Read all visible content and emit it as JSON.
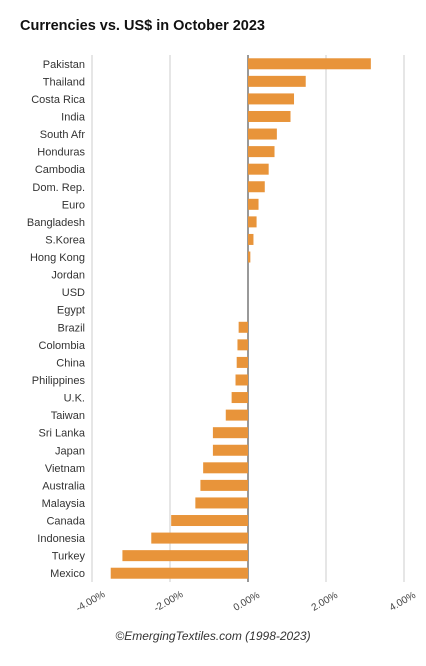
{
  "chart_data": {
    "type": "bar",
    "orientation": "horizontal",
    "title": "Currencies vs. US$ in October 2023",
    "categories": [
      "Pakistan",
      "Thailand",
      "Costa Rica",
      "India",
      "South Afr",
      "Honduras",
      "Cambodia",
      "Dom. Rep.",
      "Euro",
      "Bangladesh",
      "S.Korea",
      "Hong Kong",
      "Jordan",
      "USD",
      "Egypt",
      "Brazil",
      "Colombia",
      "China",
      "Philippines",
      "U.K.",
      "Taiwan",
      "Sri Lanka",
      "Japan",
      "Vietnam",
      "Australia",
      "Malaysia",
      "Canada",
      "Indonesia",
      "Turkey",
      "Mexico"
    ],
    "values": [
      3.15,
      1.48,
      1.18,
      1.09,
      0.74,
      0.68,
      0.53,
      0.43,
      0.27,
      0.22,
      0.14,
      0.06,
      0,
      0,
      0,
      -0.24,
      -0.27,
      -0.29,
      -0.32,
      -0.42,
      -0.57,
      -0.9,
      -0.9,
      -1.15,
      -1.22,
      -1.35,
      -1.97,
      -2.48,
      -3.22,
      -3.52
    ],
    "xlim": [
      -4.0,
      4.0
    ],
    "xticks": [
      "-4.00%",
      "-2.00%",
      "0.00%",
      "2.00%",
      "4.00%"
    ],
    "xtick_values": [
      -4,
      -2,
      0,
      2,
      4
    ],
    "grid": true,
    "bar_color": "#E8943A"
  },
  "footer": "©EmergingTextiles.com (1998-2023)"
}
